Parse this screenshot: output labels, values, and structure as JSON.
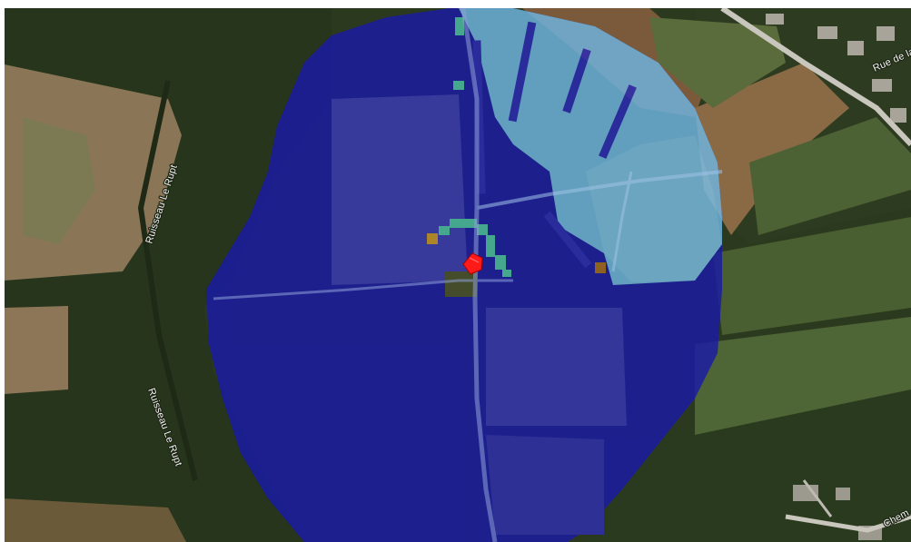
{
  "map": {
    "imagery": "satellite",
    "labels": {
      "stream_upper": "Ruisseau Le Rupt",
      "stream_lower": "Ruisseau Le Rupt",
      "road_top_right": "Rue de la",
      "road_bottom_right": "Chem"
    },
    "overlay": {
      "type": "radio-coverage-heatmap",
      "colors": {
        "strong": "#1a1aa6",
        "medium": "#2a2ac0",
        "weak": "#6fb5e0",
        "edge": "#4cc0a8",
        "marginal": "#c8962a"
      }
    },
    "marker": {
      "name": "transmitter",
      "color": "#ff1a1a"
    }
  }
}
